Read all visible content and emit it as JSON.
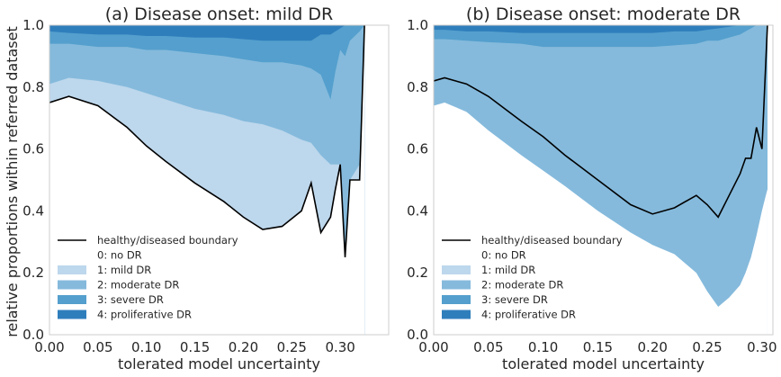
{
  "colors": {
    "no_dr": "#ffffff",
    "mild": "#bdd7ec",
    "moderate": "#85badc",
    "severe": "#549fcd",
    "proliferative": "#2f7ebc",
    "boundary": "#000000",
    "frame": "#cccccc"
  },
  "ylabel": "relative proportions within referred dataset",
  "chart_data": [
    {
      "type": "area",
      "title": "(a) Disease onset: mild DR",
      "xlabel": "tolerated model uncertainty",
      "xlim": [
        0.0,
        0.35
      ],
      "ylim": [
        0.0,
        1.0
      ],
      "xticks": [
        "0.00",
        "0.05",
        "0.10",
        "0.15",
        "0.20",
        "0.25",
        "0.30"
      ],
      "yticks": [
        "0.0",
        "0.2",
        "0.4",
        "0.6",
        "0.8",
        "1.0"
      ],
      "grid": false,
      "legend_position": "lower-left",
      "legend": [
        "healthy/diseased boundary",
        "0: no DR",
        "1: mild DR",
        "2: moderate DR",
        "3: severe DR",
        "4: proliferative DR"
      ],
      "x": [
        0.0,
        0.02,
        0.05,
        0.08,
        0.1,
        0.12,
        0.15,
        0.18,
        0.2,
        0.22,
        0.24,
        0.26,
        0.27,
        0.28,
        0.29,
        0.295,
        0.3,
        0.305,
        0.31,
        0.32,
        0.325
      ],
      "series": [
        {
          "name": "healthy/diseased boundary",
          "values": [
            0.75,
            0.77,
            0.74,
            0.67,
            0.61,
            0.56,
            0.49,
            0.43,
            0.38,
            0.34,
            0.35,
            0.4,
            0.49,
            0.33,
            0.38,
            0.47,
            0.55,
            0.25,
            0.5,
            0.5,
            1.0
          ]
        },
        {
          "name": "1: mild DR",
          "values": [
            0.81,
            0.83,
            0.82,
            0.8,
            0.78,
            0.76,
            0.73,
            0.71,
            0.69,
            0.68,
            0.66,
            0.63,
            0.62,
            0.58,
            0.55,
            0.55,
            0.55,
            0.25,
            0.5,
            0.55,
            1.0
          ]
        },
        {
          "name": "2: moderate DR",
          "values": [
            0.94,
            0.94,
            0.93,
            0.93,
            0.92,
            0.92,
            0.91,
            0.9,
            0.89,
            0.88,
            0.88,
            0.87,
            0.86,
            0.84,
            0.76,
            0.85,
            0.92,
            0.9,
            0.95,
            0.98,
            1.0
          ]
        },
        {
          "name": "3: severe DR",
          "values": [
            0.98,
            0.975,
            0.97,
            0.97,
            0.965,
            0.965,
            0.96,
            0.96,
            0.955,
            0.95,
            0.95,
            0.95,
            0.95,
            0.97,
            0.97,
            0.98,
            0.99,
            1.0,
            1.0,
            1.0,
            1.0
          ]
        }
      ]
    },
    {
      "type": "area",
      "title": "(b) Disease onset: moderate DR",
      "xlabel": "tolerated model uncertainty",
      "xlim": [
        0.0,
        0.31
      ],
      "ylim": [
        0.0,
        1.0
      ],
      "xticks": [
        "0.00",
        "0.05",
        "0.10",
        "0.15",
        "0.20",
        "0.25",
        "0.30"
      ],
      "yticks": [
        "0.0",
        "0.2",
        "0.4",
        "0.6",
        "0.8",
        "1.0"
      ],
      "grid": false,
      "legend_position": "lower-left",
      "legend": [
        "healthy/diseased boundary",
        "0: no DR",
        "1: mild DR",
        "2: moderate DR",
        "3: severe DR",
        "4: proliferative DR"
      ],
      "x": [
        0.0,
        0.01,
        0.03,
        0.05,
        0.08,
        0.1,
        0.12,
        0.15,
        0.18,
        0.2,
        0.22,
        0.24,
        0.25,
        0.26,
        0.27,
        0.28,
        0.285,
        0.29,
        0.295,
        0.3,
        0.305
      ],
      "series": [
        {
          "name": "1: mild DR",
          "values": [
            0.74,
            0.75,
            0.72,
            0.66,
            0.58,
            0.53,
            0.48,
            0.4,
            0.33,
            0.29,
            0.26,
            0.2,
            0.14,
            0.09,
            0.12,
            0.16,
            0.2,
            0.25,
            0.32,
            0.4,
            0.47
          ]
        },
        {
          "name": "healthy/diseased boundary",
          "values": [
            0.82,
            0.83,
            0.81,
            0.77,
            0.69,
            0.64,
            0.58,
            0.5,
            0.42,
            0.39,
            0.41,
            0.45,
            0.42,
            0.38,
            0.45,
            0.52,
            0.57,
            0.57,
            0.67,
            0.6,
            1.0
          ]
        },
        {
          "name": "2: moderate DR",
          "values": [
            0.955,
            0.955,
            0.95,
            0.945,
            0.94,
            0.93,
            0.93,
            0.93,
            0.93,
            0.93,
            0.935,
            0.94,
            0.95,
            0.95,
            0.96,
            0.97,
            0.98,
            0.99,
            1.0,
            1.0,
            1.0
          ]
        },
        {
          "name": "3: severe DR",
          "values": [
            0.985,
            0.985,
            0.98,
            0.98,
            0.975,
            0.975,
            0.975,
            0.975,
            0.975,
            0.975,
            0.98,
            0.98,
            0.985,
            0.99,
            0.995,
            1.0,
            1.0,
            1.0,
            1.0,
            1.0,
            1.0
          ]
        }
      ]
    }
  ]
}
